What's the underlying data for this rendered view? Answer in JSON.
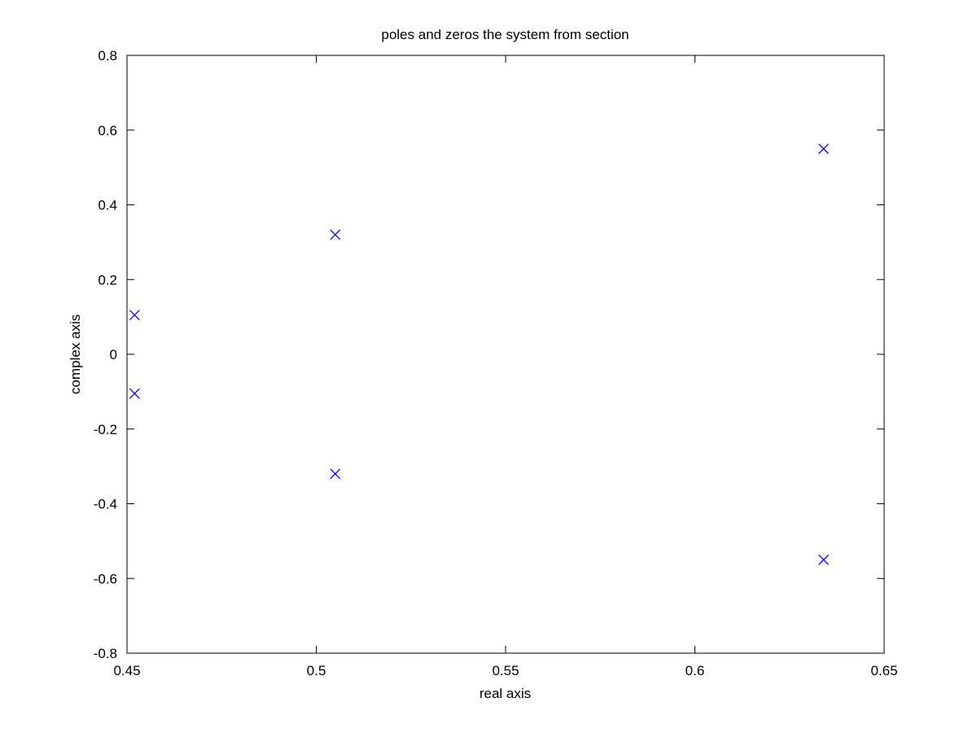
{
  "chart_data": {
    "type": "scatter",
    "title": "poles and zeros the system from section",
    "xlabel": "real axis",
    "ylabel": "complex axis",
    "xlim": [
      0.45,
      0.65
    ],
    "ylim": [
      -0.8,
      0.8
    ],
    "xticks": [
      0.45,
      0.5,
      0.55,
      0.6,
      0.65
    ],
    "xtick_labels": [
      "0.45",
      "0.5",
      "0.55",
      "0.6",
      "0.65"
    ],
    "yticks": [
      -0.8,
      -0.6,
      -0.4,
      -0.2,
      0,
      0.2,
      0.4,
      0.6,
      0.8
    ],
    "ytick_labels": [
      "-0.8",
      "-0.6",
      "-0.4",
      "-0.2",
      "0",
      "0.2",
      "0.4",
      "0.6",
      "0.8"
    ],
    "grid": false,
    "marker": "x",
    "marker_color": "#0000ff",
    "series": [
      {
        "points": [
          {
            "x": 0.452,
            "y": 0.105
          },
          {
            "x": 0.452,
            "y": -0.105
          },
          {
            "x": 0.505,
            "y": 0.32
          },
          {
            "x": 0.505,
            "y": -0.32
          },
          {
            "x": 0.634,
            "y": 0.55
          },
          {
            "x": 0.634,
            "y": -0.55
          }
        ]
      }
    ]
  }
}
